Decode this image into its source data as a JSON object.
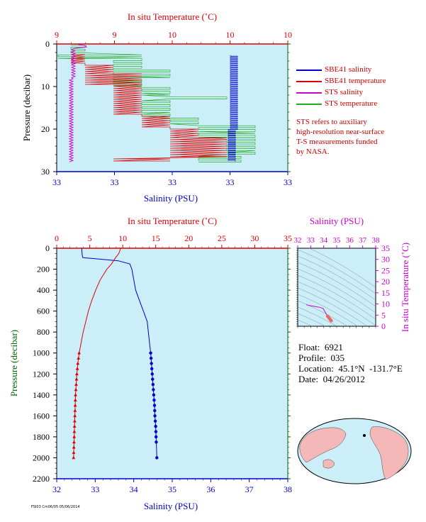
{
  "colors": {
    "salinity": "#0000cc",
    "temperature": "#dd0000",
    "sts_salinity": "#cc00cc",
    "sts_temperature": "#22aa22",
    "plot_bg": "#cceef8",
    "axis_pressure": "#006600",
    "ts_axis": "#cc00cc"
  },
  "top_panel": {
    "top_axis_label": "In situ Temperature (˚C)",
    "top_ticks": [
      "9",
      "9",
      "10",
      "10",
      "10"
    ],
    "bottom_axis_label": "Salinity (PSU)",
    "bottom_ticks": [
      "33",
      "33",
      "33",
      "33",
      "33"
    ],
    "left_axis_label": "Pressure (decibar)",
    "left_ticks": [
      "0",
      "10",
      "20",
      "30"
    ]
  },
  "legend": [
    {
      "label": "SBE41 salinity",
      "color": "#0000cc"
    },
    {
      "label": "SBE41 temperature",
      "color": "#dd0000"
    },
    {
      "label": "STS salinity",
      "color": "#cc00cc"
    },
    {
      "label": "STS temperature",
      "color": "#22aa22"
    }
  ],
  "note_lines": [
    "STS refers to auxiliary",
    "high-resolution near-surface",
    "T-S measurements funded",
    "by NASA."
  ],
  "main_panel": {
    "top_axis_label": "In situ Temperature (˚C)",
    "top_ticks": [
      "0",
      "5",
      "10",
      "15",
      "20",
      "25",
      "30",
      "35"
    ],
    "bottom_axis_label": "Salinity (PSU)",
    "bottom_ticks": [
      "32",
      "33",
      "34",
      "35",
      "36",
      "37",
      "38"
    ],
    "left_axis_label": "Pressure (decibar)",
    "left_ticks": [
      "0",
      "200",
      "400",
      "600",
      "800",
      "1000",
      "1200",
      "1400",
      "1600",
      "1800",
      "2000",
      "2200"
    ]
  },
  "ts_panel": {
    "top_axis_label": "Salinity (PSU)",
    "top_ticks": [
      "32",
      "33",
      "34",
      "35",
      "36",
      "37",
      "38"
    ],
    "right_axis_label": "In situ Temperature (˚C)",
    "right_ticks": [
      "0",
      "5",
      "10",
      "15",
      "20",
      "25",
      "30",
      "35"
    ]
  },
  "float_info": {
    "float": "Float:  6921",
    "profile": "Profile:  035",
    "location": "Location:  45.1°N  -131.7°E",
    "date": "Date:  04/26/2012"
  },
  "footer_text": "FSI03 Cm06/05  05/06/2014",
  "chart_data": [
    {
      "type": "line",
      "title": "",
      "xlabel": "Salinity (PSU)",
      "x2label": "In situ Temperature (˚C)",
      "ylabel": "Pressure (decibar)",
      "xlim": [
        32,
        38
      ],
      "x2lim": [
        0,
        35
      ],
      "ylim": [
        2200,
        0
      ],
      "series": [
        {
          "name": "SBE41 salinity",
          "axis": "salinity",
          "x": [
            32.65,
            32.66,
            32.68,
            33.0,
            33.6,
            33.9,
            33.95,
            34.0,
            34.05,
            34.15,
            34.25,
            34.35,
            34.38,
            34.41,
            34.44,
            34.46,
            34.48,
            34.5,
            34.52,
            34.54,
            34.55,
            34.57,
            34.58,
            34.6
          ],
          "y": [
            0,
            60,
            90,
            100,
            120,
            150,
            200,
            300,
            400,
            500,
            600,
            700,
            800,
            900,
            1000,
            1100,
            1200,
            1300,
            1400,
            1500,
            1600,
            1700,
            1800,
            2000
          ]
        },
        {
          "name": "SBE41 temperature",
          "axis": "temperature",
          "x": [
            9.7,
            9.4,
            8.8,
            8.3,
            7.6,
            6.6,
            5.9,
            5.3,
            4.8,
            4.4,
            4.0,
            3.7,
            3.4,
            3.2,
            3.05,
            2.95,
            2.85,
            2.8,
            2.75,
            2.7,
            2.65,
            2.6,
            2.55,
            2.5
          ],
          "y": [
            0,
            50,
            100,
            150,
            200,
            300,
            400,
            500,
            600,
            700,
            800,
            900,
            1000,
            1100,
            1200,
            1300,
            1400,
            1500,
            1600,
            1700,
            1800,
            1900,
            2000,
            2000
          ]
        }
      ],
      "markers_from_pressure": 1000
    },
    {
      "type": "line",
      "title": "",
      "xlabel": "Salinity (PSU)",
      "ylabel": "In situ Temperature (˚C)",
      "xlim": [
        32,
        38
      ],
      "ylim": [
        0,
        35
      ],
      "series": [
        {
          "name": "",
          "x": [
            32.66,
            32.9,
            33.3,
            33.7,
            33.95,
            34.1,
            34.2,
            34.3,
            34.4,
            34.5,
            34.58
          ],
          "y": [
            9.7,
            9.3,
            8.9,
            8.5,
            8.0,
            6.5,
            5.5,
            4.5,
            3.8,
            3.0,
            2.5
          ]
        }
      ]
    }
  ]
}
